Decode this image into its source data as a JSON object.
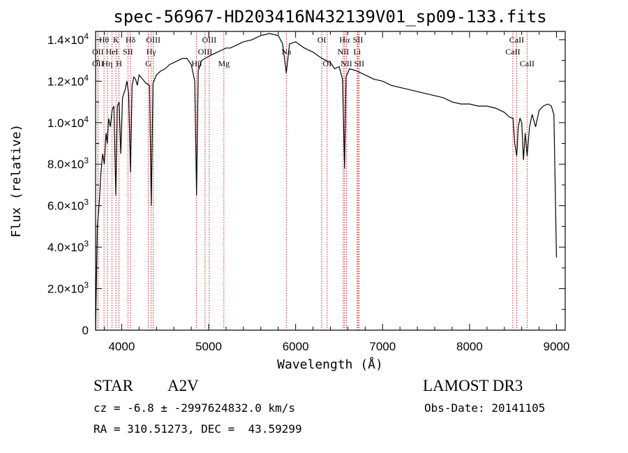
{
  "chart_data": {
    "type": "line",
    "title": "spec-56967-HD203416N432139V01_sp09-133.fits",
    "xlabel": "Wavelength (Å)",
    "ylabel": "Flux (relative)",
    "xlim": [
      3700,
      9100
    ],
    "ylim": [
      0,
      14400
    ],
    "x_ticks": [
      {
        "value": 4000,
        "label": "4000"
      },
      {
        "value": 5000,
        "label": "5000"
      },
      {
        "value": 6000,
        "label": "6000"
      },
      {
        "value": 7000,
        "label": "7000"
      },
      {
        "value": 8000,
        "label": "8000"
      },
      {
        "value": 9000,
        "label": "9000"
      }
    ],
    "y_ticks": [
      {
        "value": 0,
        "mant": "0",
        "exp": ""
      },
      {
        "value": 2000,
        "mant": "2.0×10",
        "exp": "3"
      },
      {
        "value": 4000,
        "mant": "4.0×10",
        "exp": "3"
      },
      {
        "value": 6000,
        "mant": "6.0×10",
        "exp": "3"
      },
      {
        "value": 8000,
        "mant": "8.0×10",
        "exp": "3"
      },
      {
        "value": 10000,
        "mant": "1.0×10",
        "exp": "4"
      },
      {
        "value": 12000,
        "mant": "1.2×10",
        "exp": "4"
      },
      {
        "value": 14000,
        "mant": "1.4×10",
        "exp": "4"
      }
    ],
    "series": [
      {
        "name": "spectrum",
        "x": [
          3700,
          3720,
          3740,
          3760,
          3780,
          3800,
          3820,
          3835,
          3850,
          3870,
          3889,
          3910,
          3933,
          3950,
          3970,
          3990,
          4010,
          4040,
          4060,
          4080,
          4101,
          4120,
          4140,
          4160,
          4180,
          4200,
          4240,
          4280,
          4320,
          4340,
          4360,
          4400,
          4450,
          4500,
          4550,
          4600,
          4650,
          4700,
          4750,
          4800,
          4840,
          4861,
          4880,
          4920,
          4960,
          5000,
          5050,
          5100,
          5150,
          5200,
          5250,
          5300,
          5400,
          5500,
          5600,
          5700,
          5800,
          5850,
          5893,
          5930,
          6000,
          6100,
          6200,
          6300,
          6400,
          6450,
          6500,
          6540,
          6563,
          6580,
          6620,
          6700,
          6800,
          6900,
          7000,
          7100,
          7200,
          7300,
          7400,
          7500,
          7600,
          7700,
          7800,
          7900,
          8000,
          8100,
          8200,
          8300,
          8400,
          8450,
          8500,
          8520,
          8542,
          8560,
          8580,
          8600,
          8620,
          8640,
          8662,
          8690,
          8720,
          8760,
          8800,
          8850,
          8900,
          8940,
          8970,
          9000
        ],
        "y": [
          0,
          5000,
          6000,
          7500,
          8500,
          8000,
          9500,
          9000,
          10200,
          9800,
          10600,
          10800,
          6500,
          10800,
          11000,
          8500,
          11200,
          11600,
          12000,
          11400,
          7600,
          11800,
          12200,
          12100,
          11800,
          12300,
          12100,
          11900,
          11800,
          6000,
          11900,
          12300,
          12500,
          12600,
          12800,
          12900,
          13000,
          13100,
          13100,
          12800,
          12000,
          6500,
          12500,
          13000,
          13100,
          13200,
          13300,
          13400,
          13500,
          13600,
          13600,
          13700,
          13900,
          14000,
          14200,
          14300,
          14200,
          13800,
          12400,
          13800,
          13900,
          13600,
          13400,
          13100,
          12900,
          12600,
          12700,
          12100,
          7800,
          12200,
          12600,
          12500,
          12300,
          12100,
          12000,
          11800,
          11700,
          11600,
          11500,
          11400,
          11300,
          11200,
          11000,
          10900,
          10900,
          10800,
          10800,
          10700,
          10500,
          10300,
          10200,
          9000,
          8400,
          9800,
          10200,
          10000,
          8200,
          9500,
          8400,
          9800,
          10400,
          9800,
          10600,
          10800,
          10900,
          10800,
          10400,
          3500
        ]
      }
    ],
    "line_marks": [
      {
        "label": "Hθ",
        "x": 3797,
        "row": 1
      },
      {
        "label": "OII",
        "x": 3727,
        "row": 2
      },
      {
        "label": "OII",
        "x": 3727,
        "row": 3
      },
      {
        "label": "K",
        "x": 3934,
        "row": 1
      },
      {
        "label": "HeI",
        "x": 3889,
        "row": 2
      },
      {
        "label": "Hη",
        "x": 3835,
        "row": 3
      },
      {
        "label": "Hδ",
        "x": 4102,
        "row": 1
      },
      {
        "label": "SII",
        "x": 4072,
        "row": 2
      },
      {
        "label": "H",
        "x": 3969,
        "row": 3
      },
      {
        "label": "OIII",
        "x": 4363,
        "row": 1
      },
      {
        "label": "Hγ",
        "x": 4340,
        "row": 2
      },
      {
        "label": "G",
        "x": 4305,
        "row": 3
      },
      {
        "label": "OIII",
        "x": 5007,
        "row": 1
      },
      {
        "label": "OIII",
        "x": 4959,
        "row": 2
      },
      {
        "label": "Hβ",
        "x": 4861,
        "row": 3
      },
      {
        "label": "Mg",
        "x": 5175,
        "row": 3
      },
      {
        "label": "Na",
        "x": 5893,
        "row": 2
      },
      {
        "label": "OI",
        "x": 6300,
        "row": 1
      },
      {
        "label": "OI",
        "x": 6363,
        "row": 3
      },
      {
        "label": "Hα",
        "x": 6563,
        "row": 1
      },
      {
        "label": "NII",
        "x": 6548,
        "row": 2
      },
      {
        "label": "NII",
        "x": 6584,
        "row": 3
      },
      {
        "label": "SII",
        "x": 6717,
        "row": 1
      },
      {
        "label": "Li",
        "x": 6708,
        "row": 2
      },
      {
        "label": "SII",
        "x": 6731,
        "row": 3
      },
      {
        "label": "CaII",
        "x": 8542,
        "row": 1
      },
      {
        "label": "CaII",
        "x": 8498,
        "row": 2
      },
      {
        "label": "CaII",
        "x": 8662,
        "row": 3
      }
    ],
    "grid": false,
    "line_color": "#000000",
    "marker_color": "#cc0000"
  },
  "info": {
    "object_class": "STAR",
    "subclass": "A2V",
    "survey": "LAMOST DR3",
    "redshift": "cz = -6.8 ± -2997624832.0 km/s",
    "obs_date": "Obs-Date: 20141105",
    "coords": "RA = 310.51273, DEC =  43.59299"
  }
}
